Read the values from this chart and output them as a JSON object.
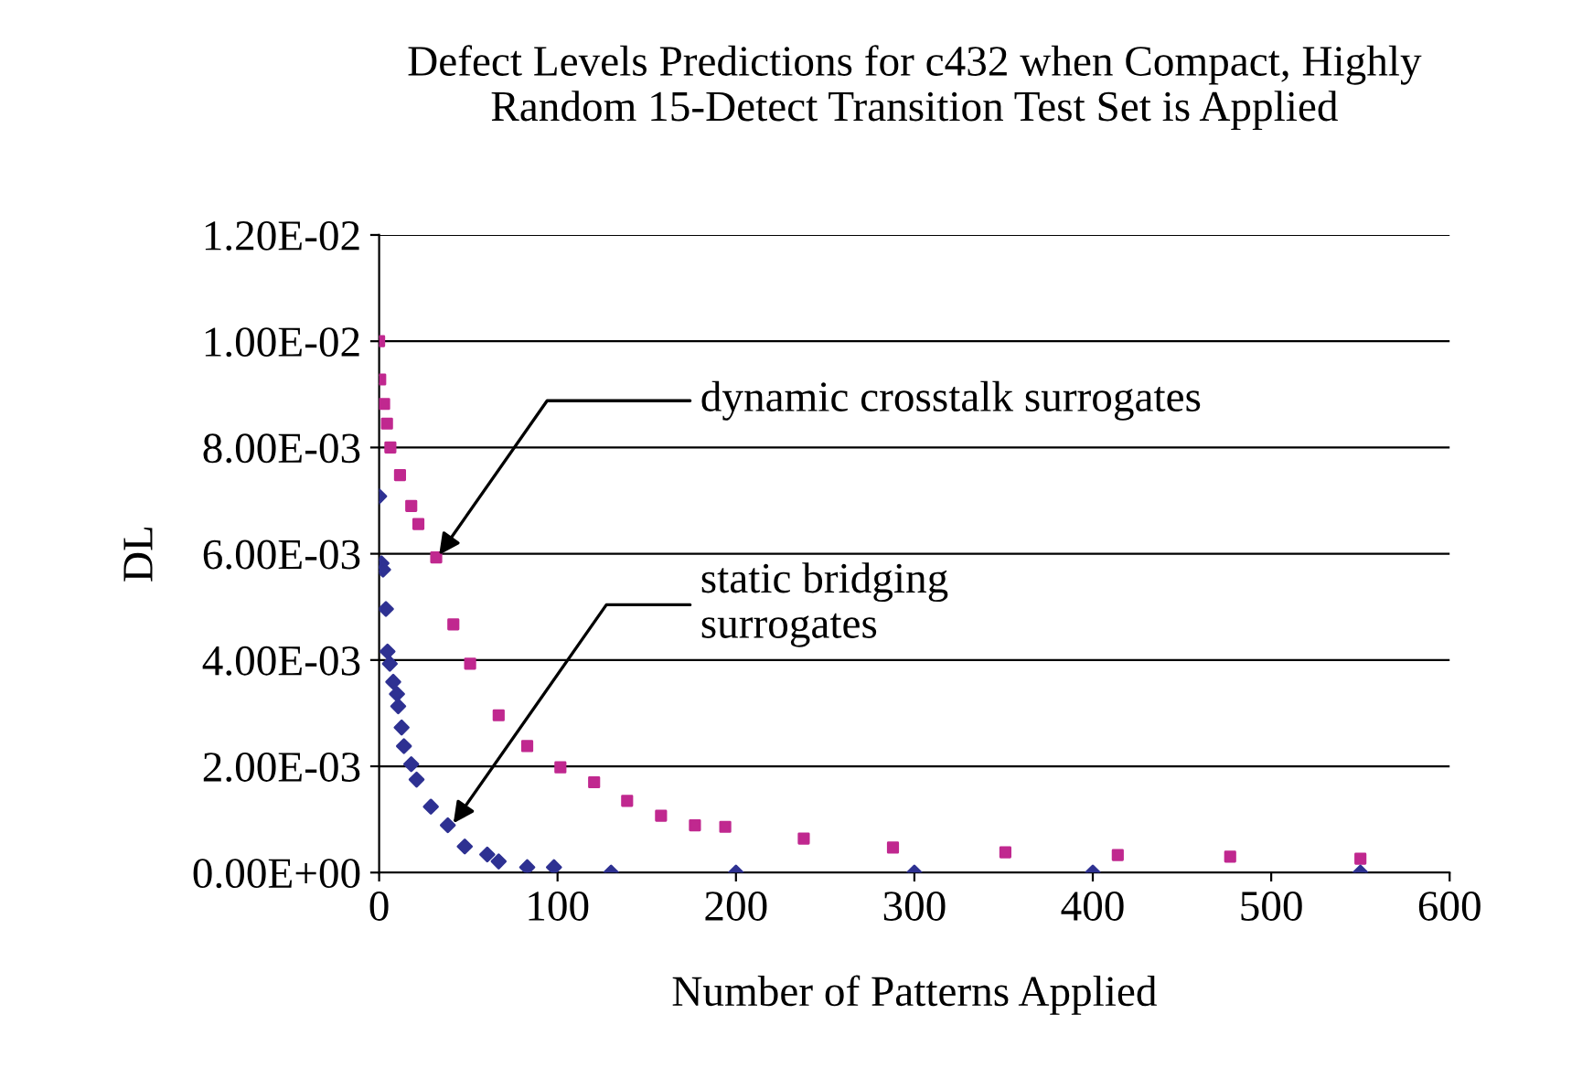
{
  "chart_data": {
    "type": "scatter",
    "title": "Defect Levels Predictions for c432 when Compact, Highly\nRandom 15-Detect Transition Test Set is Applied",
    "xlabel": "Number of Patterns Applied",
    "ylabel": "DL",
    "series": [
      {
        "color": "#c0288f",
        "marker": "square",
        "x": [
          0,
          0.6,
          2.8,
          4.4,
          6.3,
          11.7,
          18,
          22,
          32,
          41.6,
          51,
          67,
          83,
          101.6,
          120.5,
          139,
          158,
          177,
          194,
          238,
          288,
          351,
          414,
          477,
          550
        ],
        "values": [
          0.01,
          0.00928,
          0.00882,
          0.00845,
          0.008,
          0.00748,
          0.0069,
          0.00656,
          0.00593,
          0.00467,
          0.00393,
          0.00296,
          0.00238,
          0.00198,
          0.0017,
          0.00135,
          0.00107,
          0.00089,
          0.00086,
          0.00064,
          0.00047,
          0.00038,
          0.00033,
          0.0003,
          0.00026
        ]
      },
      {
        "color": "#2e3192",
        "marker": "diamond",
        "x": [
          0,
          1.3,
          2.2,
          3.8,
          4.7,
          6,
          7.9,
          10,
          10.7,
          12.6,
          13.9,
          18,
          21,
          29,
          38.5,
          48,
          60.6,
          67,
          83,
          98,
          130,
          200,
          300,
          400,
          550
        ],
        "values": [
          0.00708,
          0.00582,
          0.0057,
          0.00496,
          0.00416,
          0.00393,
          0.00359,
          0.00336,
          0.00313,
          0.00273,
          0.00238,
          0.00204,
          0.00175,
          0.00124,
          0.00089,
          0.00049,
          0.00034,
          0.00021,
          0.0001,
          0.0001,
          0,
          0,
          0,
          0,
          0
        ]
      }
    ],
    "xlim": [
      0,
      600
    ],
    "xticks": [
      0,
      100,
      200,
      300,
      400,
      500,
      600
    ],
    "ylim": [
      0,
      0.012
    ],
    "yticks": [
      {
        "value": 0,
        "label": "0.00E+00"
      },
      {
        "value": 0.002,
        "label": "2.00E-03"
      },
      {
        "value": 0.004,
        "label": "4.00E-03"
      },
      {
        "value": 0.006,
        "label": "6.00E-03"
      },
      {
        "value": 0.008,
        "label": "8.00E-03"
      },
      {
        "value": 0.01,
        "label": "1.00E-02"
      },
      {
        "value": 0.012,
        "label": "1.20E-02"
      }
    ],
    "grid": "y",
    "annotations": [
      {
        "text": "dynamic crosstalk surrogates",
        "x": 32,
        "y": 0.0059
      },
      {
        "text": "static bridging\nsurrogates",
        "x": 40,
        "y": 0.00085
      }
    ]
  }
}
